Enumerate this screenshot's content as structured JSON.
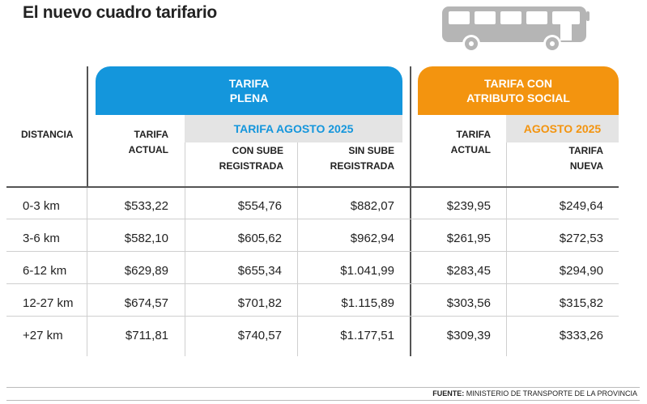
{
  "title": "El nuevo cuadro tarifario",
  "headers": {
    "distancia": "DISTANCIA",
    "tarifa_plena": [
      "TARIFA",
      "PLENA"
    ],
    "tarifa_social": [
      "TARIFA CON",
      "ATRIBUTO SOCIAL"
    ],
    "tarifa_agosto": "TARIFA AGOSTO 2025",
    "agosto": "AGOSTO 2025",
    "tarifa_actual_plena": [
      "TARIFA",
      "ACTUAL"
    ],
    "con_sube": [
      "CON SUBE",
      "REGISTRADA"
    ],
    "sin_sube": [
      "SIN SUBE",
      "REGISTRADA"
    ],
    "tarifa_actual_social": [
      "TARIFA",
      "ACTUAL"
    ],
    "tarifa_nueva": [
      "TARIFA",
      "NUEVA"
    ]
  },
  "rows": [
    {
      "distancia": "0-3 km",
      "actual": "$533,22",
      "con_sube": "$554,76",
      "sin_sube": "$882,07",
      "social_actual": "$239,95",
      "social_nueva": "$249,64"
    },
    {
      "distancia": "3-6 km",
      "actual": "$582,10",
      "con_sube": "$605,62",
      "sin_sube": "$962,94",
      "social_actual": "$261,95",
      "social_nueva": "$272,53"
    },
    {
      "distancia": "6-12 km",
      "actual": "$629,89",
      "con_sube": "$655,34",
      "sin_sube": "$1.041,99",
      "social_actual": "$283,45",
      "social_nueva": "$294,90"
    },
    {
      "distancia": "12-27 km",
      "actual": "$674,57",
      "con_sube": "$701,82",
      "sin_sube": "$1.115,89",
      "social_actual": "$303,56",
      "social_nueva": "$315,82"
    },
    {
      "distancia": "+27 km",
      "actual": "$711,81",
      "con_sube": "$740,57",
      "sin_sube": "$1.177,51",
      "social_actual": "$309,39",
      "social_nueva": "$333,26"
    }
  ],
  "source": {
    "label": "FUENTE:",
    "text": "MINISTERIO DE TRANSPORTE DE LA PROVINCIA"
  },
  "colors": {
    "blue": "#1496dc",
    "orange": "#f3940f",
    "gray_band": "#e4e4e4"
  },
  "icons": [
    "bus-icon"
  ]
}
